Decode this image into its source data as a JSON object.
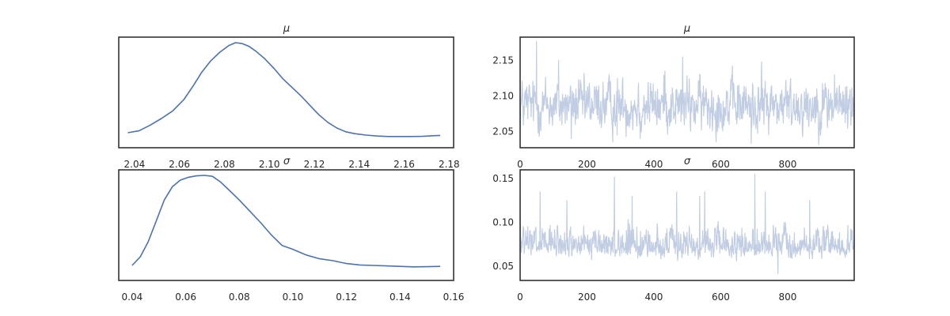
{
  "chart_data": [
    {
      "type": "line",
      "title": "μ",
      "xlabel": "",
      "ylabel": "",
      "xlim": [
        2.033,
        2.182
      ],
      "x_ticks": [
        2.04,
        2.06,
        2.08,
        2.1,
        2.12,
        2.14,
        2.16,
        2.18
      ],
      "tick_labels": [
        "2.04",
        "2.06",
        "2.08",
        "2.10",
        "2.12",
        "2.14",
        "2.16",
        "2.18"
      ],
      "y_ticks_visible": false,
      "grid": false,
      "series": [
        {
          "x": [
            2.037,
            2.042,
            2.047,
            2.052,
            2.057,
            2.062,
            2.066,
            2.07,
            2.074,
            2.078,
            2.082,
            2.085,
            2.088,
            2.091,
            2.094,
            2.098,
            2.102,
            2.106,
            2.11,
            2.114,
            2.118,
            2.122,
            2.126,
            2.13,
            2.134,
            2.138,
            2.143,
            2.148,
            2.153,
            2.158,
            2.163,
            2.168,
            2.173,
            2.176
          ],
          "y": [
            0.05,
            0.07,
            0.13,
            0.2,
            0.28,
            0.4,
            0.54,
            0.69,
            0.81,
            0.9,
            0.97,
            1.0,
            0.99,
            0.96,
            0.91,
            0.83,
            0.73,
            0.62,
            0.53,
            0.44,
            0.34,
            0.24,
            0.16,
            0.1,
            0.06,
            0.04,
            0.025,
            0.015,
            0.01,
            0.01,
            0.01,
            0.012,
            0.018,
            0.022
          ]
        }
      ]
    },
    {
      "type": "line",
      "title": "μ",
      "xlabel": "",
      "ylabel": "",
      "xlim": [
        0,
        999
      ],
      "ylim": [
        2.027,
        2.183
      ],
      "x_ticks": [
        0,
        200,
        400,
        600,
        800
      ],
      "x_tick_labels": [
        "0",
        "200",
        "400",
        "600",
        "800"
      ],
      "y_ticks": [
        2.05,
        2.1,
        2.15
      ],
      "y_tick_labels": [
        "2.05",
        "2.10",
        "2.15"
      ],
      "grid": false,
      "series": [
        {
          "n": 1000,
          "center": 2.087,
          "spread": 0.018,
          "spikes": [
            [
              49,
              2.177
            ],
            [
              115,
              2.15
            ],
            [
              153,
              2.04
            ],
            [
              290,
              2.045
            ],
            [
              359,
              2.04
            ],
            [
              433,
              2.135
            ],
            [
              486,
              2.155
            ],
            [
              691,
              2.033
            ],
            [
              722,
              2.148
            ],
            [
              940,
              2.13
            ]
          ]
        }
      ]
    },
    {
      "type": "line",
      "title": "σ",
      "xlabel": "",
      "ylabel": "",
      "xlim": [
        0.035,
        0.16
      ],
      "x_ticks": [
        0.04,
        0.06,
        0.08,
        0.1,
        0.12,
        0.14,
        0.16
      ],
      "tick_labels": [
        "0.04",
        "0.06",
        "0.08",
        "0.10",
        "0.12",
        "0.14",
        "0.16"
      ],
      "y_ticks_visible": false,
      "grid": false,
      "series": [
        {
          "x": [
            0.04,
            0.043,
            0.046,
            0.049,
            0.052,
            0.055,
            0.058,
            0.061,
            0.064,
            0.067,
            0.07,
            0.073,
            0.076,
            0.08,
            0.084,
            0.088,
            0.092,
            0.096,
            0.1,
            0.105,
            0.11,
            0.115,
            0.12,
            0.125,
            0.13,
            0.135,
            0.14,
            0.145,
            0.15,
            0.155
          ],
          "y": [
            0.05,
            0.14,
            0.3,
            0.52,
            0.74,
            0.88,
            0.95,
            0.98,
            0.995,
            1.0,
            0.99,
            0.93,
            0.85,
            0.74,
            0.62,
            0.5,
            0.37,
            0.26,
            0.22,
            0.16,
            0.12,
            0.1,
            0.07,
            0.055,
            0.05,
            0.045,
            0.04,
            0.035,
            0.037,
            0.04
          ]
        }
      ]
    },
    {
      "type": "line",
      "title": "σ",
      "xlabel": "",
      "ylabel": "",
      "xlim": [
        0,
        999
      ],
      "ylim": [
        0.034,
        0.16
      ],
      "x_ticks": [
        0,
        200,
        400,
        600,
        800
      ],
      "x_tick_labels": [
        "0",
        "200",
        "400",
        "600",
        "800"
      ],
      "y_ticks": [
        0.05,
        0.1,
        0.15
      ],
      "y_tick_labels": [
        "0.05",
        "0.10",
        "0.15"
      ],
      "grid": false,
      "series": [
        {
          "n": 1000,
          "center": 0.072,
          "spread": 0.011,
          "spikes": [
            [
              0,
              0.13
            ],
            [
              60,
              0.135
            ],
            [
              140,
              0.125
            ],
            [
              282,
              0.152
            ],
            [
              335,
              0.13
            ],
            [
              468,
              0.135
            ],
            [
              537,
              0.13
            ],
            [
              552,
              0.135
            ],
            [
              702,
              0.155
            ],
            [
              733,
              0.135
            ],
            [
              771,
              0.042
            ],
            [
              866,
              0.125
            ]
          ]
        }
      ]
    }
  ]
}
